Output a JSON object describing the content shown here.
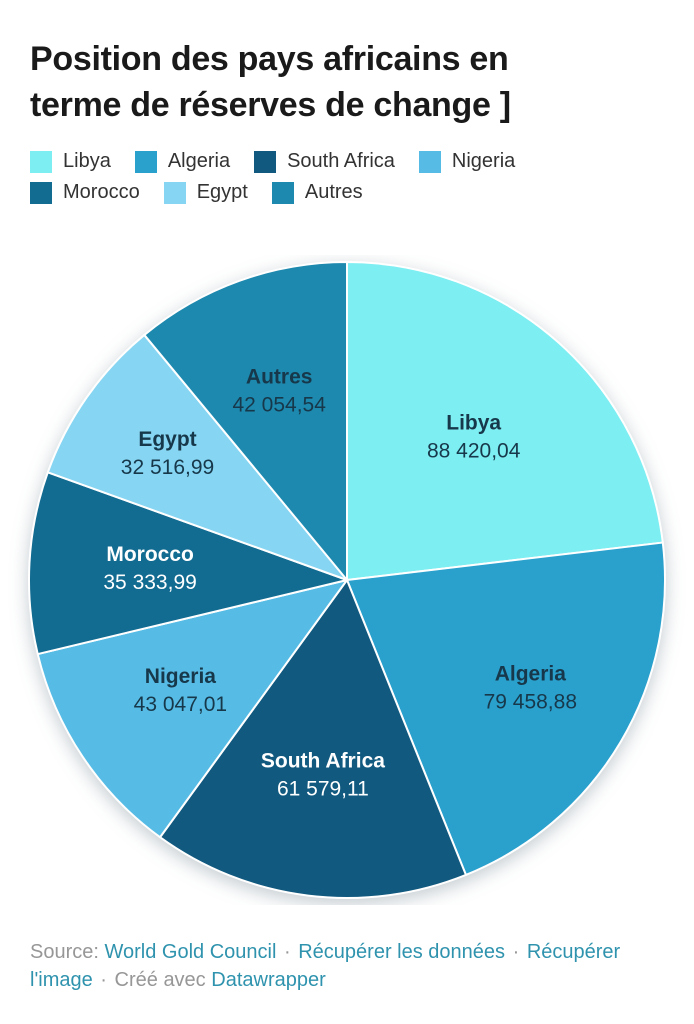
{
  "header": {
    "title_lines": [
      "Position des pays africains en",
      "terme de réserves de change ]"
    ],
    "title_full": "Position des pays africains en terme de réserves de change ]"
  },
  "chart_data": {
    "type": "pie",
    "title": "Position des pays africains en terme de réserves de change ]",
    "legend_position": "top",
    "direction": "clockwise",
    "start_angle_deg": 0,
    "categories": [
      "Libya",
      "Algeria",
      "South Africa",
      "Nigeria",
      "Morocco",
      "Egypt",
      "Autres"
    ],
    "values": [
      88420.04,
      79458.88,
      61579.11,
      43047.01,
      35333.99,
      32516.99,
      42054.54
    ],
    "series": [
      {
        "label": "Libya",
        "value": 88420.04,
        "value_label": "88 420,04",
        "color": "#7deef2",
        "text_color": "#17384a",
        "label_r": 0.6
      },
      {
        "label": "Algeria",
        "value": 79458.88,
        "value_label": "79 458,88",
        "color": "#2aa0cd",
        "text_color": "#17384a",
        "label_r": 0.67
      },
      {
        "label": "South Africa",
        "value": 61579.11,
        "value_label": "61 579,11",
        "color": "#11597f",
        "text_color": "#ffffff",
        "label_r": 0.62
      },
      {
        "label": "Nigeria",
        "value": 43047.01,
        "value_label": "43 047,01",
        "color": "#57bce5",
        "text_color": "#17384a",
        "label_r": 0.63
      },
      {
        "label": "Morocco",
        "value": 35333.99,
        "value_label": "35 333,99",
        "color": "#126b91",
        "text_color": "#ffffff",
        "label_r": 0.62
      },
      {
        "label": "Egypt",
        "value": 32516.99,
        "value_label": "32 516,99",
        "color": "#86d5f2",
        "text_color": "#17384a",
        "label_r": 0.69
      },
      {
        "label": "Autres",
        "value": 42054.54,
        "value_label": "42 054,54",
        "color": "#1d89ae",
        "text_color": "#17384a",
        "label_r": 0.63
      }
    ]
  },
  "footer": {
    "source_prefix": "Source:",
    "source_link": "World Gold Council",
    "separator": "·",
    "data_link": "Récupérer les données",
    "image_link": "Récupérer l'image",
    "created_prefix": "Créé avec",
    "created_link": "Datawrapper"
  },
  "colors": {
    "background": "#ffffff",
    "title_text": "#1a1a1a",
    "legend_text": "#333333",
    "link": "#2f93ae",
    "muted_text": "#979797"
  }
}
